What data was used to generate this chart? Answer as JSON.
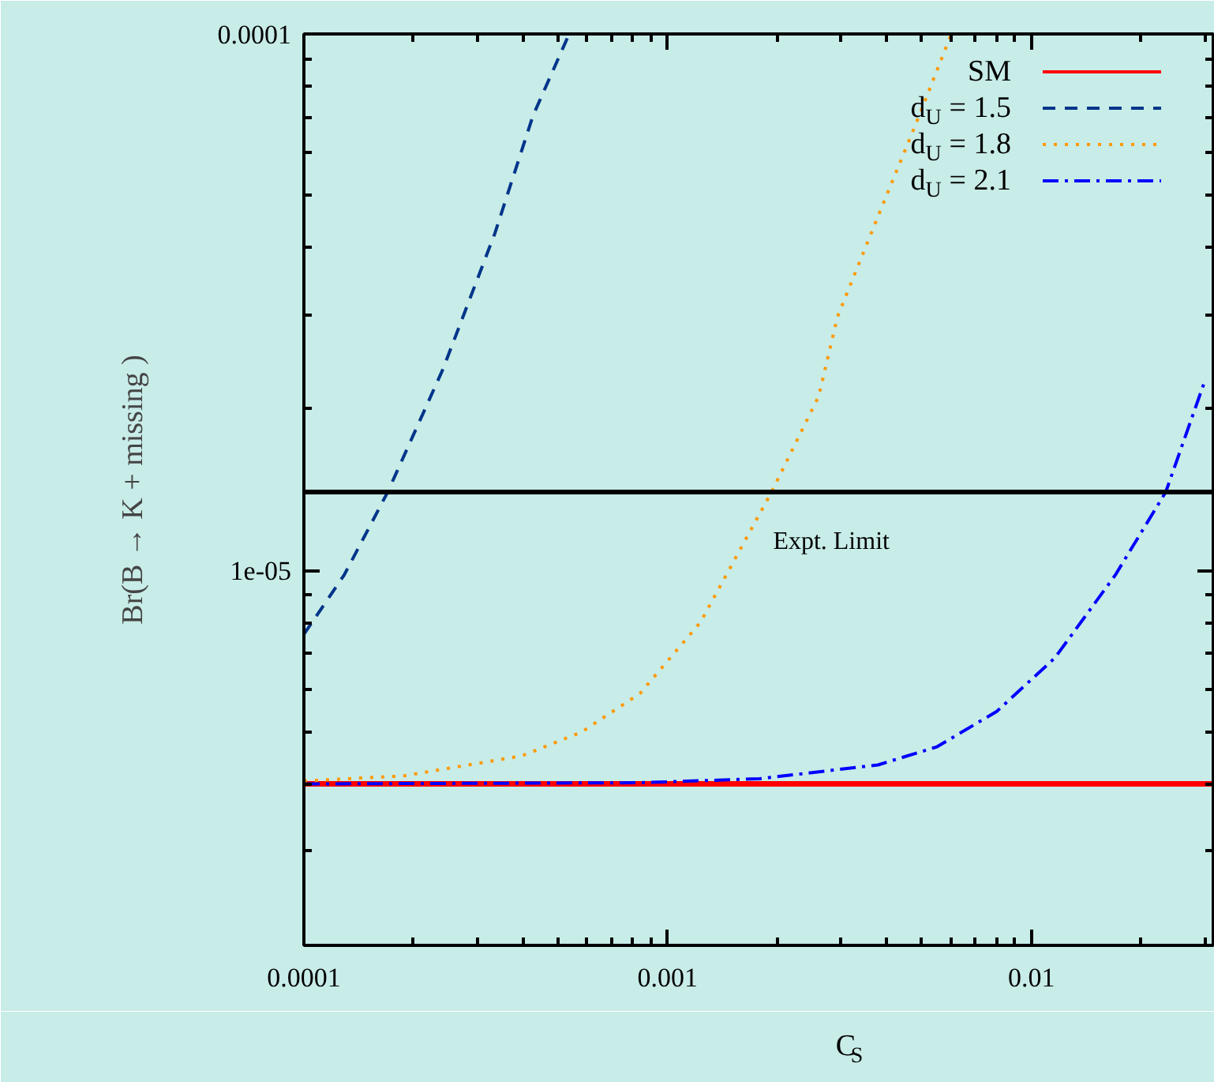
{
  "chart_data": {
    "type": "line",
    "xlabel": "C$_{S}$",
    "ylabel": "Br(B → K + missing )",
    "log": "xy",
    "grid": false,
    "legend": "top right",
    "xlim": [
      0.0001,
      0.0316
    ],
    "ylim": [
      2e-06,
      0.0001
    ],
    "xticks": [
      0.0001,
      0.001,
      0.01
    ],
    "yticks": [
      {
        "value": 1e-05,
        "label": "1e-05"
      },
      0.0001
    ],
    "ref_lines": [
      {
        "axis": "y",
        "value": 1.4e-05,
        "label": "Expt. Limit",
        "color": "#000000"
      }
    ],
    "series": [
      {
        "name": "SM",
        "color": "#ff0000",
        "line_style": "solid",
        "x": [
          0.0001,
          0.0316
        ],
        "values": [
          4e-06,
          4e-06
        ]
      },
      {
        "name": "d$_{U}$ = 1.5",
        "color": "#00358a",
        "line_style": "dashed",
        "x": [
          0.0001,
          0.000129,
          0.00017,
          0.000241,
          0.000335,
          0.000426,
          0.000536
        ],
        "values": [
          7.6e-06,
          9.8e-06,
          1.4e-05,
          2.37e-05,
          4.25e-05,
          7.03e-05,
          0.0001
        ]
      },
      {
        "name": "d$_{U}$ = 1.8",
        "color": "#ff9900",
        "line_style": "dotted",
        "x": [
          0.0001,
          0.000188,
          0.000397,
          0.000581,
          0.00084,
          0.00123,
          0.00193,
          0.0026,
          0.00293,
          0.00384,
          0.00483,
          0.00602
        ],
        "values": [
          4.05e-06,
          4.14e-06,
          4.51e-06,
          5e-06,
          5.9e-06,
          8e-06,
          1.4e-05,
          2.11e-05,
          2.97e-05,
          4.68e-05,
          6.84e-05,
          0.0001
        ]
      },
      {
        "name": "d$_{U}$ = 2.1",
        "color": "#0000ff",
        "line_style": "dashdot",
        "x": [
          0.0001,
          0.00084,
          0.00179,
          0.00379,
          0.0055,
          0.00803,
          0.0116,
          0.017,
          0.0234,
          0.03
        ],
        "values": [
          4e-06,
          4.02e-06,
          4.09e-06,
          4.34e-06,
          4.69e-06,
          5.46e-06,
          6.87e-06,
          9.8e-06,
          1.4e-05,
          2.26e-05
        ]
      }
    ]
  }
}
